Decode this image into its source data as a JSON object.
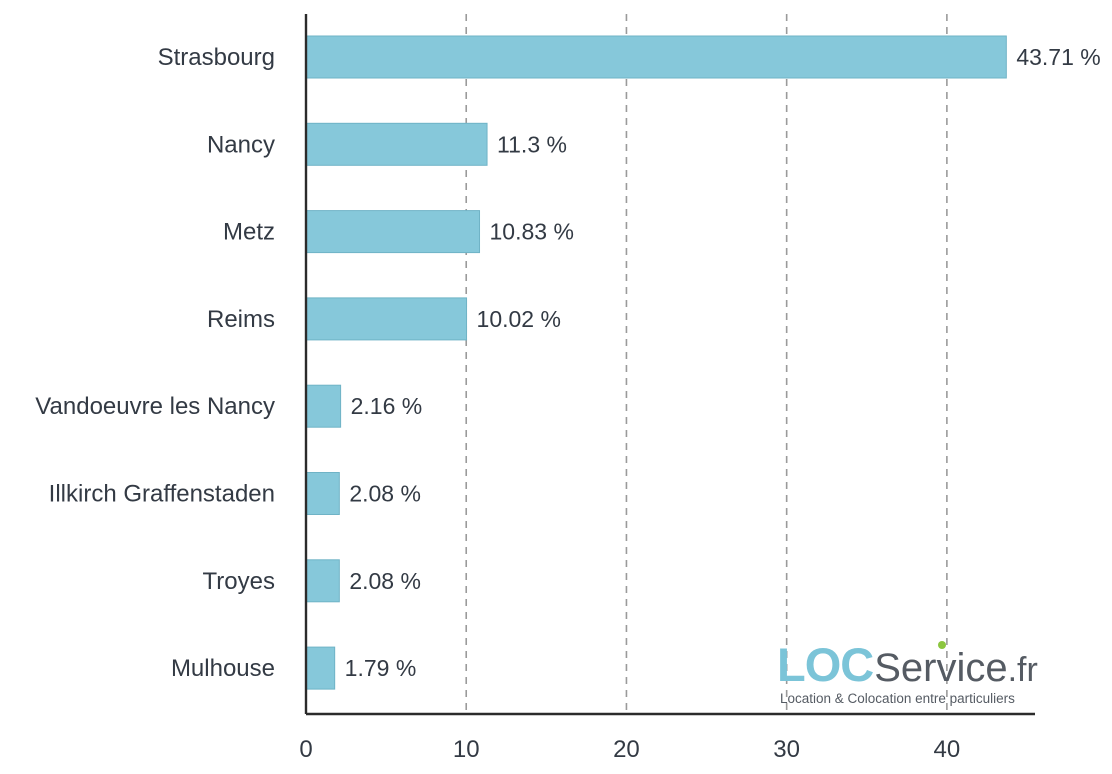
{
  "chart_data": {
    "type": "bar",
    "orientation": "horizontal",
    "categories": [
      "Strasbourg",
      "Nancy",
      "Metz",
      "Reims",
      "Vandoeuvre les Nancy",
      "Illkirch Graffenstaden",
      "Troyes",
      "Mulhouse"
    ],
    "values": [
      43.71,
      11.3,
      10.83,
      10.02,
      2.16,
      2.08,
      2.08,
      1.79
    ],
    "value_labels": [
      "43.71 %",
      "11.3 %",
      "10.83 %",
      "10.02 %",
      "2.16 %",
      "2.08 %",
      "2.08 %",
      "1.79 %"
    ],
    "xticks": [
      "0",
      "10",
      "20",
      "30",
      "40"
    ],
    "xlim": [
      0,
      45.5
    ],
    "grid": "vertical dashed",
    "bar_color": "#86c8da",
    "bar_edge_color": "#6fb3c6"
  },
  "logo": {
    "brand_loc": "LOC",
    "brand_service": "Service",
    "brand_tld": ".fr",
    "tagline": "Location & Colocation entre particuliers",
    "loc_color": "#7bc4d8",
    "service_color": "#555b63",
    "dot_color": "#8cc63f"
  }
}
